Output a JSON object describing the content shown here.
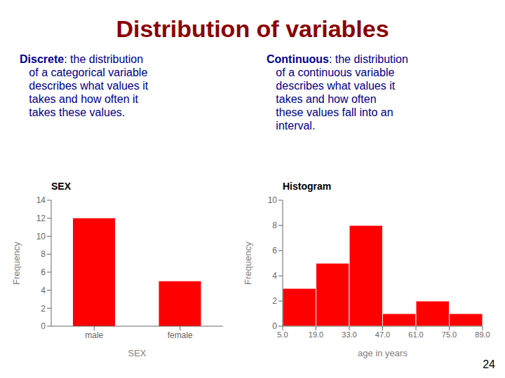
{
  "title": "Distribution of variables",
  "annotations": [
    {
      "title": "Discrete",
      "text": ": the distribution\n   of a categorical variable\n   describes what values it\n   takes and how often it\n   takes these values."
    },
    {
      "title": "Continuous",
      "text": ": the distribution\n   of a continuous variable\n   describes what values it\n   takes and how often\n   these values fall into an\n   interval."
    },
    {
      "text": "24"
    }
  ],
  "chart_data": [
    {
      "type": "bar",
      "title": "SEX",
      "x_label": "SEX",
      "y_label": "Frequency",
      "categories": [
        "male",
        "female"
      ],
      "values": [
        12,
        5
      ],
      "color": "#FF0000",
      "ylim": [
        0,
        14
      ],
      "yticks": [
        0,
        2,
        4,
        6,
        8,
        10,
        12,
        14
      ],
      "grid": false
    },
    {
      "type": "histogram",
      "title": "Histogram",
      "x_label": "age in years",
      "y_label": "Frequency",
      "bins": [
        5.0,
        19.0,
        33.0,
        47.0,
        61.0,
        75.0,
        89.0
      ],
      "values": [
        3,
        5,
        8,
        1,
        2,
        1
      ],
      "color": "#FF0000",
      "xlim": [
        5.0,
        89.0
      ],
      "xticks": [
        {
          "value": 5.0,
          "label": "5.0"
        },
        {
          "value": 19.0,
          "label": "19.0"
        },
        {
          "value": 33.0,
          "label": "33.0"
        },
        {
          "value": 47.0,
          "label": "47.0"
        },
        {
          "value": 61.0,
          "label": "61.0"
        },
        {
          "value": 75.0,
          "label": "75.0"
        },
        {
          "value": 89.0,
          "label": "89.0"
        }
      ],
      "ylim": [
        0,
        10
      ],
      "yticks": [
        0,
        2,
        4,
        6,
        8,
        10
      ],
      "grid": false
    }
  ]
}
